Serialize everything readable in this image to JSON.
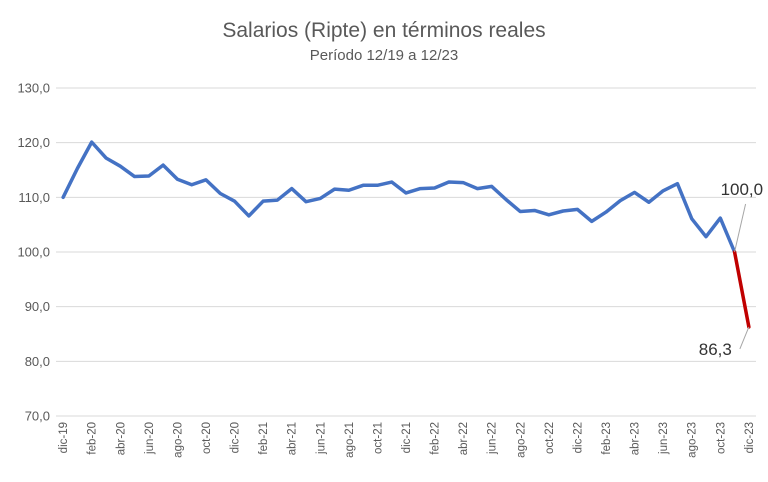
{
  "chart_data": {
    "type": "line",
    "title": "Salarios (Ripte) en términos reales",
    "subtitle": "Período 12/19 a 12/23",
    "xlabel": "",
    "ylabel": "",
    "ylim": [
      70,
      130
    ],
    "yticks": [
      "70,0",
      "80,0",
      "90,0",
      "100,0",
      "110,0",
      "120,0",
      "130,0"
    ],
    "grid": true,
    "legend": "none",
    "x": [
      "dic-19",
      "ene-20",
      "feb-20",
      "mar-20",
      "abr-20",
      "may-20",
      "jun-20",
      "jul-20",
      "ago-20",
      "sep-20",
      "oct-20",
      "nov-20",
      "dic-20",
      "ene-21",
      "feb-21",
      "mar-21",
      "abr-21",
      "may-21",
      "jun-21",
      "jul-21",
      "ago-21",
      "sep-21",
      "oct-21",
      "nov-21",
      "dic-21",
      "ene-22",
      "feb-22",
      "mar-22",
      "abr-22",
      "may-22",
      "jun-22",
      "jul-22",
      "ago-22",
      "sep-22",
      "oct-22",
      "nov-22",
      "dic-22",
      "ene-23",
      "feb-23",
      "mar-23",
      "abr-23",
      "may-23",
      "jun-23",
      "jul-23",
      "ago-23",
      "sep-23",
      "oct-23",
      "nov-23",
      "dic-23"
    ],
    "xtick_labels": [
      "dic-19",
      "feb-20",
      "abr-20",
      "jun-20",
      "ago-20",
      "oct-20",
      "dic-20",
      "feb-21",
      "abr-21",
      "jun-21",
      "ago-21",
      "oct-21",
      "dic-21",
      "feb-22",
      "abr-22",
      "jun-22",
      "ago-22",
      "oct-22",
      "dic-22",
      "feb-23",
      "abr-23",
      "jun-23",
      "ago-23",
      "oct-23",
      "dic-23"
    ],
    "series": [
      {
        "color": "#4472c4",
        "values": [
          110.0,
          115.3,
          120.1,
          117.2,
          115.7,
          113.8,
          113.9,
          115.9,
          113.3,
          112.3,
          113.2,
          110.7,
          109.3,
          106.6,
          109.3,
          109.5,
          111.6,
          109.2,
          109.8,
          111.5,
          111.3,
          112.2,
          112.2,
          112.8,
          110.8,
          111.6,
          111.7,
          112.8,
          112.7,
          111.6,
          112.0,
          109.6,
          107.4,
          107.6,
          106.8,
          107.5,
          107.8,
          105.6,
          107.3,
          109.4,
          110.9,
          109.1,
          111.2,
          112.5,
          106.1,
          102.8,
          106.2,
          100.0,
          null
        ]
      },
      {
        "color": "#c00000",
        "values": [
          null,
          null,
          null,
          null,
          null,
          null,
          null,
          null,
          null,
          null,
          null,
          null,
          null,
          null,
          null,
          null,
          null,
          null,
          null,
          null,
          null,
          null,
          null,
          null,
          null,
          null,
          null,
          null,
          null,
          null,
          null,
          null,
          null,
          null,
          null,
          null,
          null,
          null,
          null,
          null,
          null,
          null,
          null,
          null,
          null,
          null,
          null,
          100.0,
          86.3
        ]
      }
    ],
    "annotations": [
      {
        "text": "100,0",
        "x": "nov-23",
        "y": 100.0
      },
      {
        "text": "86,3",
        "x": "dic-23",
        "y": 86.3
      }
    ]
  }
}
